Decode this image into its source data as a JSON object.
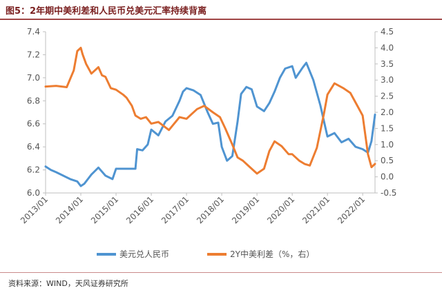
{
  "header": {
    "title": "图5：2年期中美利差和人民币兑美元汇率持续背离"
  },
  "footer": {
    "source": "资料来源：WIND，天风证券研究所"
  },
  "colors": {
    "usdcny": "#4f94d1",
    "spread": "#ed7d31",
    "axis": "#bfbfbf",
    "title": "#7a1f1f"
  },
  "chart_data": {
    "type": "line",
    "title": "2年期中美利差和人民币兑美元汇率持续背离",
    "x_tick_labels": [
      "2013/01",
      "2014/01",
      "2015/01",
      "2016/01",
      "2017/01",
      "2018/01",
      "2019/01",
      "2020/01",
      "2021/01",
      "2022/01"
    ],
    "y_left": {
      "min": 6.0,
      "max": 7.4,
      "step": 0.2,
      "tick_labels": [
        "6.0",
        "6.2",
        "6.4",
        "6.6",
        "6.8",
        "7.0",
        "7.2",
        "7.4"
      ]
    },
    "y_right": {
      "min": -0.5,
      "max": 4.5,
      "step": 0.5,
      "tick_labels": [
        "-0.5",
        "0.0",
        "0.5",
        "1.0",
        "1.5",
        "2.0",
        "2.5",
        "3.0",
        "3.5",
        "4.0",
        "4.5"
      ]
    },
    "x_range": [
      2013.0,
      2022.35
    ],
    "series": [
      {
        "name": "美元兑人民币",
        "axis": "left",
        "color": "#4f94d1",
        "x": [
          2013.0,
          2013.15,
          2013.3,
          2013.5,
          2013.7,
          2013.9,
          2014.0,
          2014.1,
          2014.3,
          2014.5,
          2014.7,
          2014.9,
          2015.0,
          2015.3,
          2015.55,
          2015.6,
          2015.75,
          2015.9,
          2016.0,
          2016.2,
          2016.4,
          2016.6,
          2016.8,
          2016.9,
          2017.0,
          2017.2,
          2017.4,
          2017.6,
          2017.75,
          2017.9,
          2018.0,
          2018.15,
          2018.3,
          2018.45,
          2018.55,
          2018.7,
          2018.85,
          2019.0,
          2019.2,
          2019.35,
          2019.5,
          2019.65,
          2019.8,
          2020.0,
          2020.1,
          2020.3,
          2020.4,
          2020.6,
          2020.8,
          2021.0,
          2021.2,
          2021.4,
          2021.6,
          2021.8,
          2022.0,
          2022.15,
          2022.25,
          2022.35
        ],
        "y": [
          6.23,
          6.2,
          6.18,
          6.15,
          6.12,
          6.1,
          6.06,
          6.08,
          6.16,
          6.22,
          6.15,
          6.12,
          6.21,
          6.21,
          6.21,
          6.38,
          6.37,
          6.42,
          6.55,
          6.5,
          6.62,
          6.67,
          6.8,
          6.88,
          6.91,
          6.89,
          6.85,
          6.7,
          6.6,
          6.61,
          6.4,
          6.28,
          6.32,
          6.62,
          6.86,
          6.92,
          6.9,
          6.75,
          6.71,
          6.78,
          6.88,
          7.0,
          7.08,
          7.1,
          7.0,
          7.09,
          7.13,
          6.98,
          6.76,
          6.49,
          6.52,
          6.44,
          6.47,
          6.4,
          6.38,
          6.35,
          6.45,
          6.68
        ]
      },
      {
        "name": "2Y中美利差（%，右）",
        "axis": "right",
        "color": "#ed7d31",
        "x": [
          2013.0,
          2013.3,
          2013.6,
          2013.8,
          2013.9,
          2014.0,
          2014.05,
          2014.15,
          2014.3,
          2014.5,
          2014.6,
          2014.7,
          2014.85,
          2015.0,
          2015.2,
          2015.3,
          2015.45,
          2015.55,
          2015.7,
          2015.85,
          2016.0,
          2016.2,
          2016.5,
          2016.8,
          2017.0,
          2017.15,
          2017.3,
          2017.5,
          2017.75,
          2017.95,
          2018.1,
          2018.3,
          2018.45,
          2018.6,
          2018.8,
          2019.0,
          2019.2,
          2019.35,
          2019.5,
          2019.7,
          2019.9,
          2020.0,
          2020.2,
          2020.35,
          2020.5,
          2020.7,
          2020.9,
          2021.0,
          2021.2,
          2021.45,
          2021.65,
          2021.85,
          2022.0,
          2022.15,
          2022.25,
          2022.35
        ],
        "y": [
          2.8,
          2.82,
          2.78,
          3.3,
          3.9,
          4.0,
          3.8,
          3.5,
          3.2,
          3.4,
          3.15,
          3.1,
          2.75,
          2.7,
          2.55,
          2.45,
          2.2,
          1.9,
          1.8,
          1.85,
          1.65,
          1.7,
          1.45,
          1.85,
          1.8,
          1.95,
          2.1,
          2.2,
          2.0,
          1.85,
          1.5,
          1.0,
          0.6,
          0.5,
          0.3,
          0.1,
          0.25,
          0.8,
          1.1,
          0.95,
          0.7,
          0.7,
          0.5,
          0.4,
          0.35,
          0.9,
          1.95,
          2.55,
          2.9,
          2.75,
          2.6,
          2.2,
          1.9,
          0.7,
          0.3,
          0.4
        ]
      }
    ],
    "legend": {
      "position": "bottom",
      "entries": [
        "美元兑人民币",
        "2Y中美利差（%，右）"
      ]
    }
  }
}
